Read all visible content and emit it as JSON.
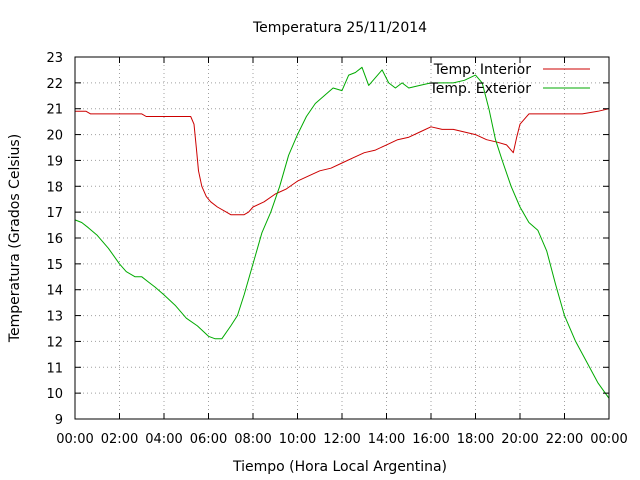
{
  "chart_data": {
    "type": "line",
    "title": "Temperatura 25/11/2014",
    "xlabel": "Tiempo (Hora Local Argentina)",
    "ylabel": "Temperatura (Grados Celsius)",
    "xlim": [
      0,
      24
    ],
    "ylim": [
      9,
      23
    ],
    "x_ticks": [
      0,
      2,
      4,
      6,
      8,
      10,
      12,
      14,
      16,
      18,
      20,
      22,
      24
    ],
    "x_tick_labels": [
      "00:00",
      "02:00",
      "04:00",
      "06:00",
      "08:00",
      "10:00",
      "12:00",
      "14:00",
      "16:00",
      "18:00",
      "20:00",
      "22:00",
      "00:00"
    ],
    "y_ticks": [
      9,
      10,
      11,
      12,
      13,
      14,
      15,
      16,
      17,
      18,
      19,
      20,
      21,
      22,
      23
    ],
    "y_tick_labels": [
      "9",
      "10",
      "11",
      "12",
      "13",
      "14",
      "15",
      "16",
      "17",
      "18",
      "19",
      "20",
      "21",
      "22",
      "23"
    ],
    "grid": true,
    "legend_position": "top-right",
    "series": [
      {
        "name": "Temp. Interior",
        "color": "#cc0000",
        "points": [
          [
            0,
            20.9
          ],
          [
            0.5,
            20.9
          ],
          [
            0.7,
            20.8
          ],
          [
            2.0,
            20.8
          ],
          [
            3.0,
            20.8
          ],
          [
            3.2,
            20.7
          ],
          [
            4.2,
            20.7
          ],
          [
            5.2,
            20.7
          ],
          [
            5.35,
            20.4
          ],
          [
            5.45,
            19.5
          ],
          [
            5.55,
            18.6
          ],
          [
            5.7,
            18.0
          ],
          [
            5.9,
            17.6
          ],
          [
            6.1,
            17.4
          ],
          [
            6.4,
            17.2
          ],
          [
            6.8,
            17.0
          ],
          [
            7.0,
            16.9
          ],
          [
            7.6,
            16.9
          ],
          [
            7.8,
            17.0
          ],
          [
            8.0,
            17.2
          ],
          [
            8.5,
            17.4
          ],
          [
            9.0,
            17.7
          ],
          [
            9.5,
            17.9
          ],
          [
            10.0,
            18.2
          ],
          [
            10.5,
            18.4
          ],
          [
            11.0,
            18.6
          ],
          [
            11.5,
            18.7
          ],
          [
            12.0,
            18.9
          ],
          [
            12.5,
            19.1
          ],
          [
            13.0,
            19.3
          ],
          [
            13.5,
            19.4
          ],
          [
            14.0,
            19.6
          ],
          [
            14.5,
            19.8
          ],
          [
            15.0,
            19.9
          ],
          [
            15.5,
            20.1
          ],
          [
            16.0,
            20.3
          ],
          [
            16.5,
            20.2
          ],
          [
            17.0,
            20.2
          ],
          [
            17.5,
            20.1
          ],
          [
            18.0,
            20.0
          ],
          [
            18.5,
            19.8
          ],
          [
            19.0,
            19.7
          ],
          [
            19.4,
            19.6
          ],
          [
            19.7,
            19.3
          ],
          [
            19.85,
            19.9
          ],
          [
            20.0,
            20.4
          ],
          [
            20.4,
            20.8
          ],
          [
            21.0,
            20.8
          ],
          [
            22.0,
            20.8
          ],
          [
            22.8,
            20.8
          ],
          [
            23.5,
            20.9
          ],
          [
            24,
            21.0
          ]
        ]
      },
      {
        "name": "Temp. Exterior",
        "color": "#00aa00",
        "points": [
          [
            0,
            16.7
          ],
          [
            0.3,
            16.6
          ],
          [
            0.6,
            16.4
          ],
          [
            1.0,
            16.1
          ],
          [
            1.5,
            15.6
          ],
          [
            2.0,
            15.0
          ],
          [
            2.3,
            14.7
          ],
          [
            2.7,
            14.5
          ],
          [
            3.0,
            14.5
          ],
          [
            3.3,
            14.3
          ],
          [
            3.6,
            14.1
          ],
          [
            4.0,
            13.8
          ],
          [
            4.5,
            13.4
          ],
          [
            5.0,
            12.9
          ],
          [
            5.5,
            12.6
          ],
          [
            6.0,
            12.2
          ],
          [
            6.3,
            12.1
          ],
          [
            6.6,
            12.1
          ],
          [
            7.0,
            12.6
          ],
          [
            7.3,
            13.0
          ],
          [
            7.6,
            13.8
          ],
          [
            8.0,
            15.0
          ],
          [
            8.4,
            16.2
          ],
          [
            8.8,
            17.0
          ],
          [
            9.2,
            18.0
          ],
          [
            9.6,
            19.2
          ],
          [
            10.0,
            20.0
          ],
          [
            10.4,
            20.7
          ],
          [
            10.8,
            21.2
          ],
          [
            11.2,
            21.5
          ],
          [
            11.6,
            21.8
          ],
          [
            12.0,
            21.7
          ],
          [
            12.3,
            22.3
          ],
          [
            12.6,
            22.4
          ],
          [
            12.9,
            22.6
          ],
          [
            13.2,
            21.9
          ],
          [
            13.5,
            22.2
          ],
          [
            13.8,
            22.5
          ],
          [
            14.1,
            22.0
          ],
          [
            14.4,
            21.8
          ],
          [
            14.7,
            22.0
          ],
          [
            15.0,
            21.8
          ],
          [
            15.5,
            21.9
          ],
          [
            16.0,
            22.0
          ],
          [
            16.5,
            22.0
          ],
          [
            17.0,
            22.0
          ],
          [
            17.5,
            22.1
          ],
          [
            18.0,
            22.3
          ],
          [
            18.3,
            22.0
          ],
          [
            18.6,
            21.0
          ],
          [
            18.9,
            19.8
          ],
          [
            19.2,
            19.0
          ],
          [
            19.6,
            18.0
          ],
          [
            20.0,
            17.2
          ],
          [
            20.4,
            16.6
          ],
          [
            20.8,
            16.3
          ],
          [
            21.2,
            15.5
          ],
          [
            21.6,
            14.2
          ],
          [
            22.0,
            13.0
          ],
          [
            22.5,
            12.0
          ],
          [
            23.0,
            11.2
          ],
          [
            23.5,
            10.4
          ],
          [
            24,
            9.8
          ]
        ]
      }
    ]
  }
}
